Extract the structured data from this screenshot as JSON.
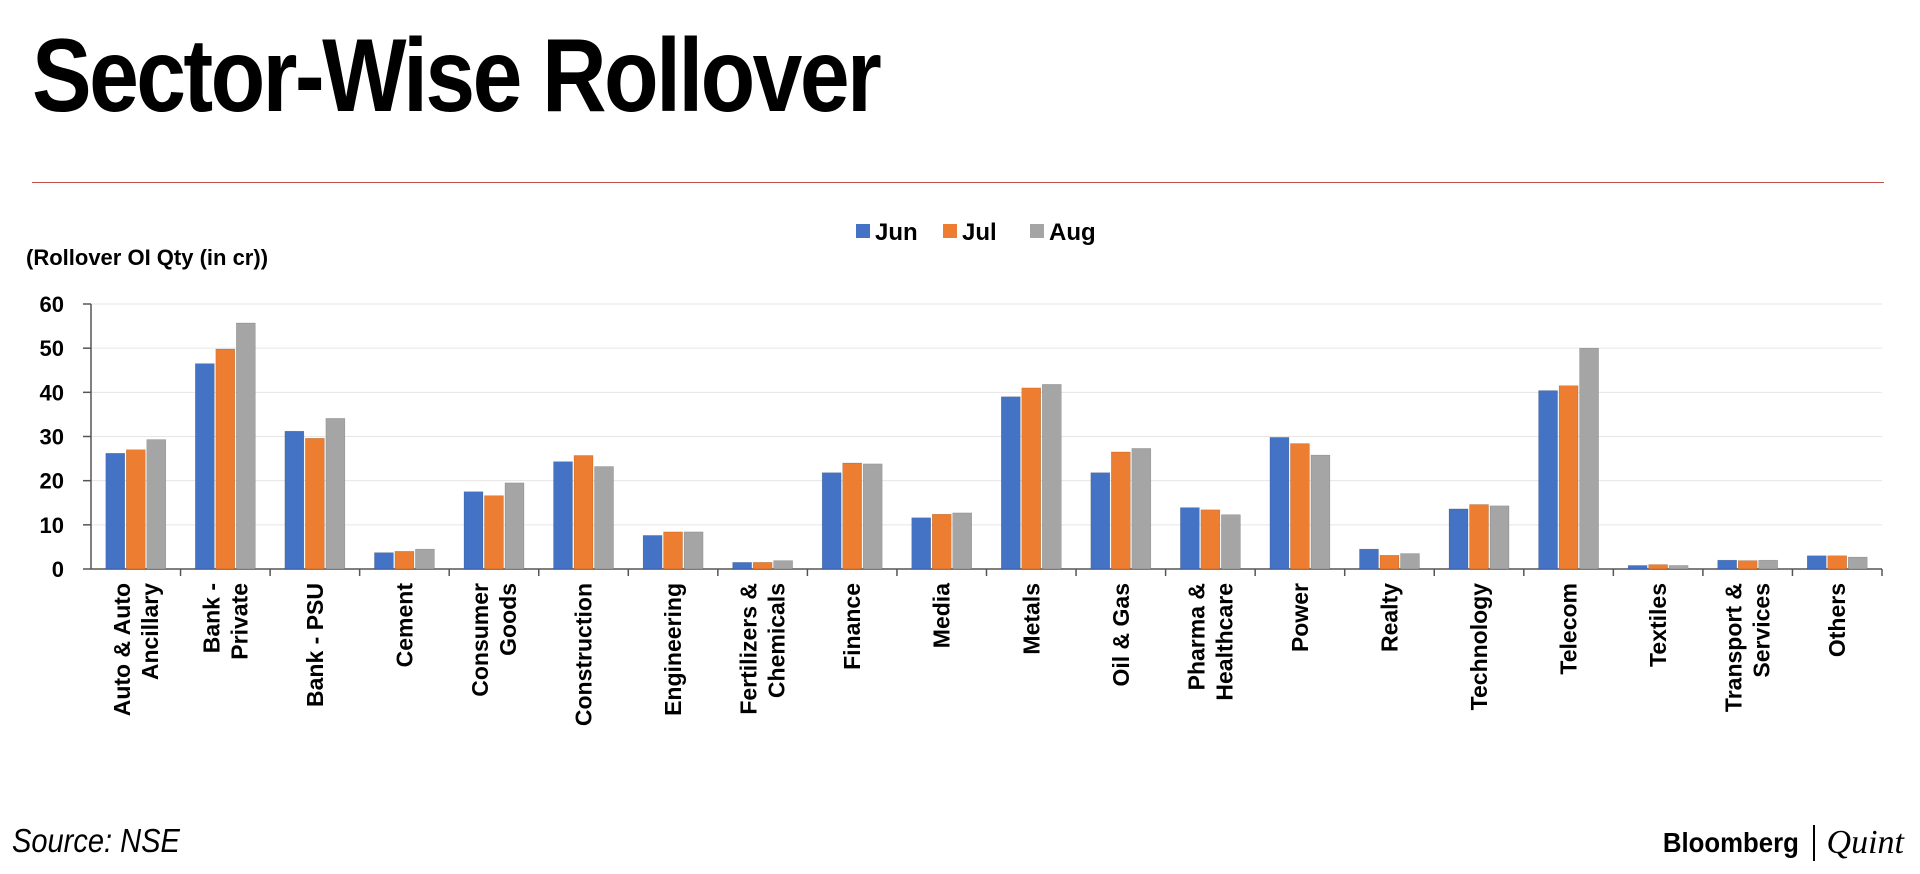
{
  "header": {
    "title": "Sector-Wise Rollover"
  },
  "footer": {
    "source": "Source: NSE",
    "brand_left": "Bloomberg",
    "brand_right": "Quint"
  },
  "chart_data": {
    "type": "bar",
    "ylabel": "(Rollover OI Qty (in cr))",
    "ylim": [
      0,
      60
    ],
    "yticks": [
      0,
      10,
      20,
      30,
      40,
      50,
      60
    ],
    "grid": true,
    "legend_position": "top-center",
    "categories": [
      [
        "Auto & Auto",
        "Ancillary"
      ],
      [
        "Bank -",
        "Private"
      ],
      [
        "Bank - PSU"
      ],
      [
        "Cement"
      ],
      [
        "Consumer",
        "Goods"
      ],
      [
        "Construction"
      ],
      [
        "Engineering"
      ],
      [
        "Fertilizers &",
        "Chemicals"
      ],
      [
        "Finance"
      ],
      [
        "Media"
      ],
      [
        "Metals"
      ],
      [
        "Oil & Gas"
      ],
      [
        "Pharma &",
        "Healthcare"
      ],
      [
        "Power"
      ],
      [
        "Realty"
      ],
      [
        "Technology"
      ],
      [
        "Telecom"
      ],
      [
        "Textiles"
      ],
      [
        "Transport &",
        "Services"
      ],
      [
        "Others"
      ]
    ],
    "series": [
      {
        "name": "Jun",
        "color": "#4472c4",
        "values": [
          26.2,
          46.5,
          31.2,
          3.7,
          17.5,
          24.3,
          7.6,
          1.5,
          21.8,
          11.6,
          39.0,
          21.8,
          13.9,
          29.8,
          4.5,
          13.6,
          40.4,
          0.8,
          2.0,
          3.0
        ]
      },
      {
        "name": "Jul",
        "color": "#ed7d31",
        "values": [
          27.0,
          49.8,
          29.6,
          4.0,
          16.6,
          25.7,
          8.4,
          1.5,
          24.0,
          12.4,
          41.0,
          26.5,
          13.4,
          28.4,
          3.1,
          14.6,
          41.5,
          1.0,
          1.9,
          3.0
        ]
      },
      {
        "name": "Aug",
        "color": "#a5a5a5",
        "values": [
          29.3,
          55.7,
          34.1,
          4.5,
          19.5,
          23.2,
          8.4,
          1.9,
          23.8,
          12.7,
          41.8,
          27.3,
          12.3,
          25.8,
          3.5,
          14.3,
          50.0,
          0.8,
          2.0,
          2.7
        ]
      }
    ]
  }
}
